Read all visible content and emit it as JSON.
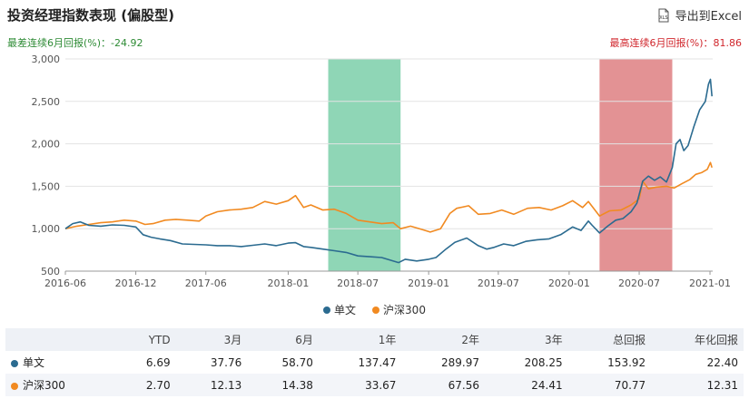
{
  "header": {
    "title": "投资经理指数表现 (偏股型)",
    "export_label": "导出到Excel",
    "xls_icon_text": "XLS"
  },
  "summary": {
    "worst": "最差连续6月回报(%)：-24.92",
    "best": "最高连续6月回报(%)：81.86"
  },
  "colors": {
    "series1": "#2b6b90",
    "series2": "#f18a21",
    "worst_band": "#8fd6b6",
    "best_band": "#e39294",
    "worst_text": "#2e8b35",
    "best_text": "#d0262c"
  },
  "chart_data": {
    "type": "line",
    "y_ticks": [
      "500",
      "1,000",
      "1,500",
      "2,000",
      "2,500",
      "3,000"
    ],
    "ylim": [
      500,
      3000
    ],
    "x_ticks": [
      "2016-06",
      "2016-12",
      "2017-06",
      "2018-01",
      "2018-07",
      "2019-01",
      "2019-07",
      "2020-01",
      "2020-07",
      "2021-01"
    ],
    "x_tick_dates": [
      "2016-06-01",
      "2016-12-01",
      "2017-06-01",
      "2018-01-01",
      "2018-07-01",
      "2019-01-01",
      "2019-07-01",
      "2020-01-01",
      "2020-07-01",
      "2021-01-01"
    ],
    "x_range": [
      "2016-06-01",
      "2021-01-08"
    ],
    "bands": [
      {
        "type": "worst",
        "start": "2018-04-15",
        "end": "2018-10-20"
      },
      {
        "type": "best",
        "start": "2020-03-20",
        "end": "2020-09-25"
      }
    ],
    "series": [
      {
        "name": "单文",
        "points": [
          [
            "2016-06-01",
            1000
          ],
          [
            "2016-06-20",
            1060
          ],
          [
            "2016-07-10",
            1080
          ],
          [
            "2016-08-01",
            1040
          ],
          [
            "2016-09-01",
            1030
          ],
          [
            "2016-10-01",
            1045
          ],
          [
            "2016-11-01",
            1040
          ],
          [
            "2016-12-01",
            1020
          ],
          [
            "2016-12-20",
            930
          ],
          [
            "2017-01-10",
            900
          ],
          [
            "2017-02-01",
            880
          ],
          [
            "2017-03-01",
            860
          ],
          [
            "2017-04-01",
            820
          ],
          [
            "2017-05-01",
            815
          ],
          [
            "2017-06-01",
            810
          ],
          [
            "2017-07-01",
            800
          ],
          [
            "2017-08-01",
            800
          ],
          [
            "2017-09-01",
            790
          ],
          [
            "2017-10-01",
            805
          ],
          [
            "2017-11-01",
            820
          ],
          [
            "2017-12-01",
            800
          ],
          [
            "2018-01-01",
            830
          ],
          [
            "2018-01-20",
            835
          ],
          [
            "2018-02-10",
            790
          ],
          [
            "2018-03-01",
            780
          ],
          [
            "2018-04-01",
            760
          ],
          [
            "2018-05-01",
            740
          ],
          [
            "2018-06-01",
            720
          ],
          [
            "2018-07-01",
            680
          ],
          [
            "2018-08-01",
            670
          ],
          [
            "2018-09-01",
            660
          ],
          [
            "2018-10-15",
            600
          ],
          [
            "2018-11-01",
            640
          ],
          [
            "2018-12-01",
            620
          ],
          [
            "2019-01-01",
            640
          ],
          [
            "2019-01-20",
            660
          ],
          [
            "2019-02-15",
            760
          ],
          [
            "2019-03-10",
            840
          ],
          [
            "2019-04-10",
            890
          ],
          [
            "2019-05-10",
            800
          ],
          [
            "2019-06-01",
            760
          ],
          [
            "2019-06-20",
            780
          ],
          [
            "2019-07-15",
            820
          ],
          [
            "2019-08-10",
            800
          ],
          [
            "2019-09-10",
            850
          ],
          [
            "2019-10-10",
            870
          ],
          [
            "2019-11-10",
            880
          ],
          [
            "2019-12-10",
            930
          ],
          [
            "2020-01-10",
            1020
          ],
          [
            "2020-02-01",
            980
          ],
          [
            "2020-02-20",
            1090
          ],
          [
            "2020-03-01",
            1040
          ],
          [
            "2020-03-20",
            950
          ],
          [
            "2020-04-10",
            1030
          ],
          [
            "2020-05-01",
            1100
          ],
          [
            "2020-05-20",
            1120
          ],
          [
            "2020-06-10",
            1200
          ],
          [
            "2020-06-25",
            1300
          ],
          [
            "2020-07-10",
            1560
          ],
          [
            "2020-07-25",
            1620
          ],
          [
            "2020-08-10",
            1570
          ],
          [
            "2020-08-25",
            1610
          ],
          [
            "2020-09-10",
            1550
          ],
          [
            "2020-09-25",
            1720
          ],
          [
            "2020-10-05",
            2000
          ],
          [
            "2020-10-15",
            2050
          ],
          [
            "2020-10-25",
            1920
          ],
          [
            "2020-11-05",
            1980
          ],
          [
            "2020-11-20",
            2200
          ],
          [
            "2020-12-05",
            2400
          ],
          [
            "2020-12-20",
            2500
          ],
          [
            "2020-12-28",
            2700
          ],
          [
            "2021-01-02",
            2760
          ],
          [
            "2021-01-06",
            2560
          ]
        ]
      },
      {
        "name": "沪深300",
        "points": [
          [
            "2016-06-01",
            1000
          ],
          [
            "2016-07-01",
            1030
          ],
          [
            "2016-08-01",
            1050
          ],
          [
            "2016-09-01",
            1070
          ],
          [
            "2016-10-01",
            1080
          ],
          [
            "2016-11-01",
            1100
          ],
          [
            "2016-12-01",
            1090
          ],
          [
            "2016-12-25",
            1050
          ],
          [
            "2017-01-15",
            1060
          ],
          [
            "2017-02-15",
            1100
          ],
          [
            "2017-03-15",
            1110
          ],
          [
            "2017-04-15",
            1100
          ],
          [
            "2017-05-15",
            1090
          ],
          [
            "2017-06-01",
            1150
          ],
          [
            "2017-07-01",
            1200
          ],
          [
            "2017-08-01",
            1220
          ],
          [
            "2017-09-01",
            1230
          ],
          [
            "2017-10-01",
            1250
          ],
          [
            "2017-11-01",
            1320
          ],
          [
            "2017-12-01",
            1290
          ],
          [
            "2018-01-01",
            1330
          ],
          [
            "2018-01-20",
            1390
          ],
          [
            "2018-02-10",
            1250
          ],
          [
            "2018-03-01",
            1280
          ],
          [
            "2018-04-01",
            1220
          ],
          [
            "2018-05-01",
            1230
          ],
          [
            "2018-06-01",
            1180
          ],
          [
            "2018-07-01",
            1100
          ],
          [
            "2018-08-01",
            1080
          ],
          [
            "2018-09-01",
            1060
          ],
          [
            "2018-10-01",
            1070
          ],
          [
            "2018-10-20",
            1000
          ],
          [
            "2018-11-15",
            1030
          ],
          [
            "2018-12-15",
            990
          ],
          [
            "2019-01-05",
            960
          ],
          [
            "2019-02-01",
            1000
          ],
          [
            "2019-02-25",
            1180
          ],
          [
            "2019-03-15",
            1240
          ],
          [
            "2019-04-15",
            1270
          ],
          [
            "2019-05-10",
            1170
          ],
          [
            "2019-06-10",
            1180
          ],
          [
            "2019-07-10",
            1220
          ],
          [
            "2019-08-10",
            1170
          ],
          [
            "2019-09-15",
            1240
          ],
          [
            "2019-10-15",
            1250
          ],
          [
            "2019-11-15",
            1220
          ],
          [
            "2019-12-15",
            1270
          ],
          [
            "2020-01-10",
            1330
          ],
          [
            "2020-02-05",
            1250
          ],
          [
            "2020-02-20",
            1320
          ],
          [
            "2020-03-20",
            1150
          ],
          [
            "2020-04-15",
            1210
          ],
          [
            "2020-05-15",
            1220
          ],
          [
            "2020-06-10",
            1280
          ],
          [
            "2020-07-01",
            1350
          ],
          [
            "2020-07-10",
            1560
          ],
          [
            "2020-07-25",
            1470
          ],
          [
            "2020-08-15",
            1490
          ],
          [
            "2020-09-10",
            1500
          ],
          [
            "2020-09-30",
            1480
          ],
          [
            "2020-10-20",
            1530
          ],
          [
            "2020-11-10",
            1580
          ],
          [
            "2020-11-25",
            1640
          ],
          [
            "2020-12-10",
            1660
          ],
          [
            "2020-12-25",
            1700
          ],
          [
            "2021-01-02",
            1780
          ],
          [
            "2021-01-06",
            1720
          ]
        ]
      }
    ]
  },
  "table": {
    "headers": [
      "",
      "YTD",
      "3月",
      "6月",
      "1年",
      "2年",
      "3年",
      "总回报",
      "年化回报"
    ],
    "rows": [
      {
        "name": "单文",
        "values": [
          "6.69",
          "37.76",
          "58.70",
          "137.47",
          "289.97",
          "208.25",
          "153.92",
          "22.40"
        ]
      },
      {
        "name": "沪深300",
        "values": [
          "2.70",
          "12.13",
          "14.38",
          "33.67",
          "67.56",
          "24.41",
          "70.77",
          "12.31"
        ]
      }
    ]
  }
}
